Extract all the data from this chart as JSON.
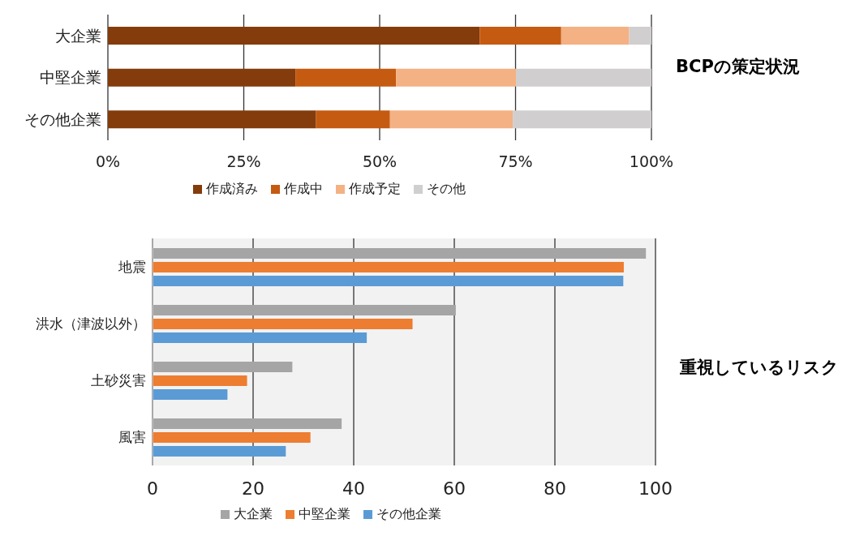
{
  "chart_data": [
    {
      "type": "bar",
      "orientation": "horizontal",
      "stacked": true,
      "title": "BCPの策定状況",
      "categories": [
        "大企業",
        "中堅企業",
        "その他企業"
      ],
      "series": [
        {
          "name": "作成済み",
          "color": "#843c0c",
          "values": [
            68.4,
            34.5,
            38.3
          ]
        },
        {
          "name": "作成中",
          "color": "#c55a11",
          "values": [
            15.0,
            18.5,
            13.6
          ]
        },
        {
          "name": "作成予定",
          "color": "#f4b183",
          "values": [
            12.5,
            22.1,
            22.6
          ]
        },
        {
          "name": "その他",
          "color": "#d0cece",
          "values": [
            4.1,
            24.9,
            25.5
          ]
        }
      ],
      "xlim": [
        0,
        100
      ],
      "xticks": [
        {
          "value": 0,
          "label": "0%"
        },
        {
          "value": 25,
          "label": "25%"
        },
        {
          "value": 50,
          "label": "50%"
        },
        {
          "value": 75,
          "label": "75%"
        },
        {
          "value": 100,
          "label": "100%"
        }
      ],
      "grid": "x",
      "legend": "bottom"
    },
    {
      "type": "bar",
      "orientation": "horizontal",
      "title": "重視しているリスク",
      "categories": [
        "地震",
        "洪水（津波以外）",
        "土砂災害",
        "風害"
      ],
      "series": [
        {
          "name": "大企業",
          "color": "#a5a5a5",
          "values": [
            98.1,
            60.3,
            27.8,
            37.6
          ]
        },
        {
          "name": "中堅企業",
          "color": "#ed7d31",
          "values": [
            93.7,
            51.7,
            18.8,
            31.4
          ]
        },
        {
          "name": "その他企業",
          "color": "#5b9bd5",
          "values": [
            93.6,
            42.6,
            14.9,
            26.5
          ]
        }
      ],
      "xlim": [
        0,
        100
      ],
      "xticks": [
        0,
        20,
        40,
        60,
        80,
        100
      ],
      "grid": "x",
      "legend": "bottom"
    }
  ]
}
